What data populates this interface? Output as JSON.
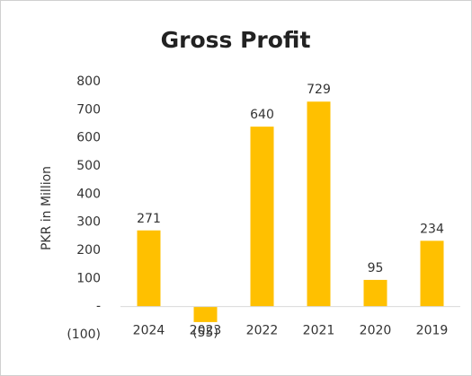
{
  "chart_data": {
    "type": "bar",
    "title": "Gross Profit",
    "y_label": "PKR in Million",
    "categories": [
      "2024",
      "2023",
      "2022",
      "2021",
      "2020",
      "2019"
    ],
    "values": [
      271,
      -55,
      640,
      729,
      95,
      234
    ],
    "value_labels": [
      "271",
      "(55)",
      "640",
      "729",
      "95",
      "234"
    ],
    "color": "#ffc000",
    "ylim": [
      -100,
      800
    ],
    "yticks": [
      {
        "value": -100,
        "label": "(100)"
      },
      {
        "value": 0,
        "label": "-"
      },
      100,
      200,
      300,
      400,
      500,
      600,
      700,
      800
    ],
    "grid": false
  }
}
